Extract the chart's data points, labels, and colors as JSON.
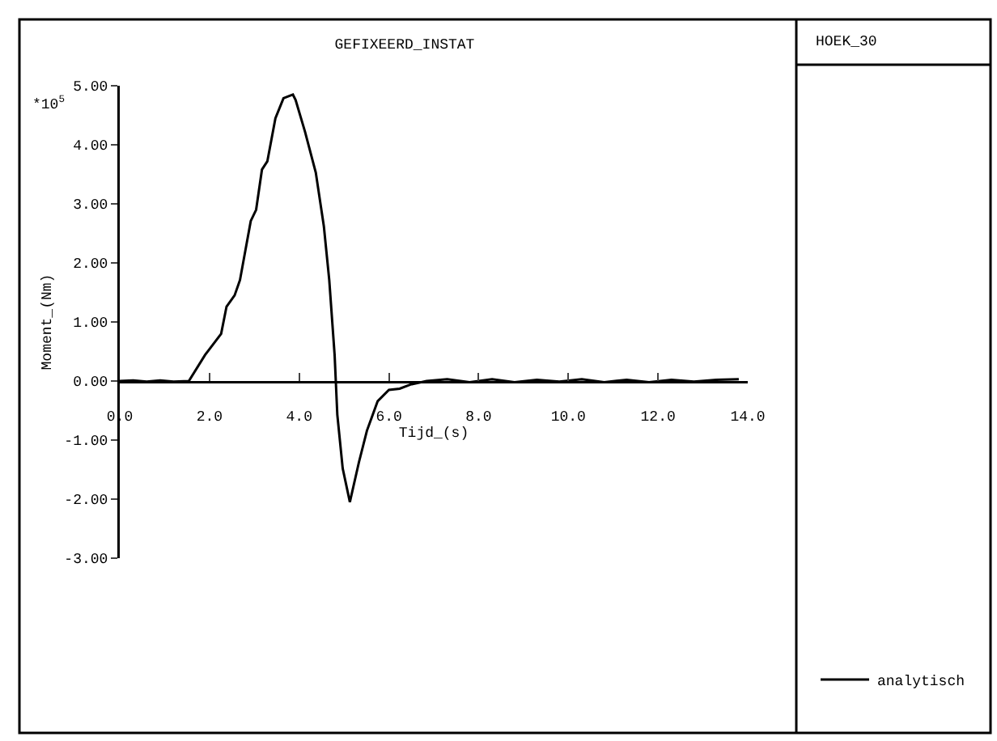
{
  "chart_data": {
    "type": "line",
    "title": "GEFIXEERD_INSTAT",
    "xlabel": "Tijd_(s)",
    "ylabel": "Moment_(Nm)",
    "legend_title": "HOEK_30",
    "annotations": [
      "*10$^{5}$"
    ],
    "x": [
      0,
      0.3,
      0.6,
      0.9,
      1.2,
      1.54,
      1.9,
      2.26,
      2.38,
      2.56,
      2.68,
      2.92,
      3.04,
      3.17,
      3.29,
      3.47,
      3.65,
      3.86,
      3.92,
      4.13,
      4.37,
      4.55,
      4.67,
      4.79,
      4.85,
      4.97,
      5.13,
      5.33,
      5.51,
      5.75,
      6.0,
      6.24,
      6.48,
      6.84,
      7.3,
      7.8,
      8.3,
      8.8,
      9.3,
      9.8,
      10.3,
      10.8,
      11.3,
      11.8,
      12.3,
      12.8,
      13.3,
      13.8
    ],
    "series": [
      {
        "name": "analytisch",
        "color": "#000000",
        "values": [
          0,
          0.01,
          -0.01,
          0.01,
          -0.01,
          0,
          0.44,
          0.8,
          1.26,
          1.45,
          1.71,
          2.71,
          2.9,
          3.58,
          3.72,
          4.45,
          4.79,
          4.85,
          4.76,
          4.22,
          3.53,
          2.62,
          1.71,
          0.44,
          -0.57,
          -1.48,
          -2.05,
          -1.38,
          -0.84,
          -0.34,
          -0.15,
          -0.13,
          -0.06,
          0,
          0.03,
          -0.02,
          0.03,
          -0.02,
          0.02,
          -0.01,
          0.03,
          -0.02,
          0.02,
          -0.02,
          0.02,
          -0.01,
          0.02,
          0.03
        ]
      }
    ],
    "xlim": [
      0,
      14
    ],
    "xticks": [
      {
        "value": 0,
        "label": "0.0"
      },
      {
        "value": 2,
        "label": "2.0"
      },
      {
        "value": 4,
        "label": "4.0"
      },
      {
        "value": 6,
        "label": "6.0"
      },
      {
        "value": 8,
        "label": "8.0"
      },
      {
        "value": 10,
        "label": "10.0"
      },
      {
        "value": 12,
        "label": "12.0"
      },
      {
        "value": 14,
        "label": "14.0"
      }
    ],
    "ylim": [
      -3,
      5
    ],
    "yticks": [
      {
        "value": -3,
        "label": "-3.00"
      },
      {
        "value": -2,
        "label": "-2.00"
      },
      {
        "value": -1,
        "label": "-1.00"
      },
      {
        "value": 0,
        "label": "0.00"
      },
      {
        "value": 1,
        "label": "1.00"
      },
      {
        "value": 2,
        "label": "2.00"
      },
      {
        "value": 3,
        "label": "3.00"
      },
      {
        "value": 4,
        "label": "4.00"
      },
      {
        "value": 5,
        "label": "5.00"
      }
    ],
    "grid": false,
    "legend": "right",
    "marker": "none",
    "line_style": "solid"
  }
}
